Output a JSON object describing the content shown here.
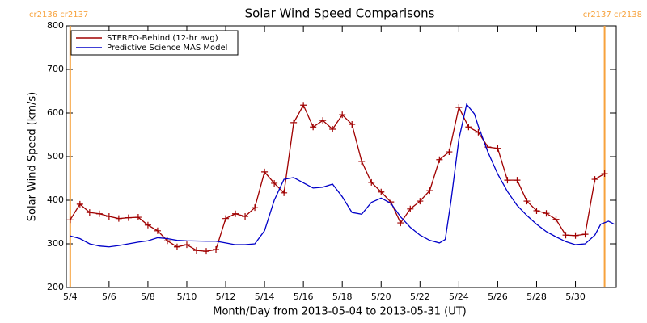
{
  "chart_data": {
    "type": "line",
    "title": "Solar Wind Speed Comparisons",
    "x_label": "Month/Day from 2013-05-04 to 2013-05-31 (UT)",
    "y_label": "Solar Wind Speed (km/s)",
    "xlim": [
      -0.2,
      28.1
    ],
    "ylim": [
      200,
      800
    ],
    "xticks": [
      {
        "value": 0,
        "label": "5/4"
      },
      {
        "value": 2,
        "label": "5/6"
      },
      {
        "value": 4,
        "label": "5/8"
      },
      {
        "value": 6,
        "label": "5/10"
      },
      {
        "value": 8,
        "label": "5/12"
      },
      {
        "value": 10,
        "label": "5/14"
      },
      {
        "value": 12,
        "label": "5/16"
      },
      {
        "value": 14,
        "label": "5/18"
      },
      {
        "value": 16,
        "label": "5/20"
      },
      {
        "value": 18,
        "label": "5/22"
      },
      {
        "value": 20,
        "label": "5/24"
      },
      {
        "value": 22,
        "label": "5/26"
      },
      {
        "value": 24,
        "label": "5/28"
      },
      {
        "value": 26,
        "label": "5/30"
      }
    ],
    "yticks": [
      200,
      300,
      400,
      500,
      600,
      700,
      800
    ],
    "legend": "upper left",
    "vlines": [
      {
        "x": 0,
        "label": "cr2136 cr2137",
        "color": "#f7a23c"
      },
      {
        "x": 27.5,
        "label": "cr2137 cr2138",
        "color": "#f7a23c"
      }
    ],
    "series": [
      {
        "name": "STEREO-Behind (12-hr avg)",
        "color": "#a00000",
        "markers": true,
        "x": [
          0,
          0.5,
          1,
          1.5,
          2,
          2.5,
          3,
          3.5,
          4,
          4.5,
          5,
          5.5,
          6,
          6.5,
          7,
          7.5,
          8,
          8.5,
          9,
          9.5,
          10,
          10.5,
          11,
          11.5,
          12,
          12.5,
          13,
          13.5,
          14,
          14.5,
          15,
          15.5,
          16,
          16.5,
          17,
          17.5,
          18,
          18.5,
          19,
          19.5,
          20,
          20.5,
          21,
          21.5,
          22,
          22.5,
          23,
          23.5,
          24,
          24.5,
          25,
          25.5,
          26,
          26.5,
          27,
          27.5
        ],
        "values": [
          355,
          391,
          372,
          369,
          363,
          358,
          360,
          361,
          343,
          330,
          307,
          293,
          298,
          285,
          283,
          287,
          358,
          369,
          363,
          383,
          465,
          439,
          417,
          578,
          618,
          568,
          583,
          563,
          596,
          574,
          489,
          441,
          419,
          396,
          348,
          380,
          398,
          422,
          493,
          511,
          613,
          568,
          556,
          522,
          519,
          446,
          446,
          398,
          376,
          370,
          356,
          320,
          319,
          322,
          448,
          461
        ]
      },
      {
        "name": "Predictive Science MAS Model",
        "color": "#0000c8",
        "markers": false,
        "x": [
          0,
          0.5,
          1,
          1.5,
          2,
          2.5,
          3,
          3.5,
          4,
          4.5,
          5,
          5.5,
          6,
          7,
          7.5,
          8,
          8.5,
          9,
          9.5,
          10,
          10.5,
          11,
          11.5,
          12,
          12.5,
          13,
          13.5,
          14,
          14.5,
          15,
          15.5,
          16,
          16.5,
          17,
          17.5,
          18,
          18.5,
          19,
          19.3,
          19.6,
          20,
          20.4,
          20.8,
          21,
          21.5,
          22,
          22.5,
          23,
          23.5,
          24,
          24.5,
          25,
          25.5,
          26,
          26.5,
          27,
          27.3,
          27.7,
          28
        ],
        "values": [
          318,
          312,
          300,
          295,
          293,
          296,
          300,
          304,
          307,
          314,
          312,
          308,
          307,
          306,
          306,
          302,
          298,
          298,
          300,
          330,
          400,
          448,
          452,
          440,
          428,
          430,
          437,
          408,
          372,
          368,
          395,
          405,
          393,
          362,
          338,
          320,
          308,
          302,
          310,
          400,
          540,
          620,
          598,
          570,
          510,
          460,
          420,
          388,
          365,
          345,
          328,
          316,
          305,
          298,
          300,
          320,
          345,
          352,
          345
        ]
      }
    ]
  }
}
